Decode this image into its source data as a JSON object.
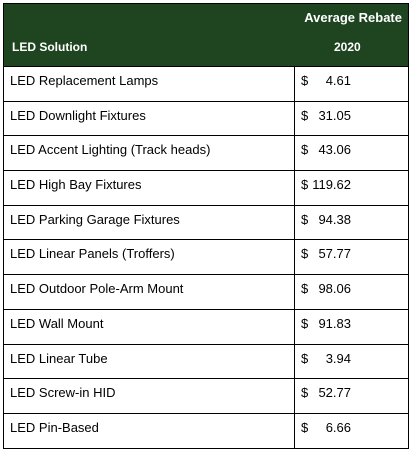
{
  "header": {
    "col_solution": "LED Solution",
    "col_rebate": "Average Rebate",
    "col_year": "2020"
  },
  "rows": [
    {
      "name": "LED Replacement Lamps",
      "currency": "$",
      "value": "4.61"
    },
    {
      "name": "LED Downlight Fixtures",
      "currency": "$",
      "value": "31.05"
    },
    {
      "name": "LED Accent Lighting (Track heads)",
      "currency": "$",
      "value": "43.06"
    },
    {
      "name": "LED High Bay Fixtures",
      "currency": "$",
      "value": "119.62"
    },
    {
      "name": "LED Parking Garage Fixtures",
      "currency": "$",
      "value": "94.38"
    },
    {
      "name": "LED Linear Panels (Troffers)",
      "currency": "$",
      "value": "57.77"
    },
    {
      "name": "LED Outdoor Pole-Arm Mount",
      "currency": "$",
      "value": "98.06"
    },
    {
      "name": "LED Wall Mount",
      "currency": "$",
      "value": "91.83"
    },
    {
      "name": "LED Linear Tube",
      "currency": "$",
      "value": "3.94"
    },
    {
      "name": "LED Screw-in HID",
      "currency": "$",
      "value": "52.77"
    },
    {
      "name": "LED Pin-Based",
      "currency": "$",
      "value": "6.66"
    }
  ],
  "colors": {
    "header_bg": "#1e4420",
    "header_text": "#ffffff"
  }
}
